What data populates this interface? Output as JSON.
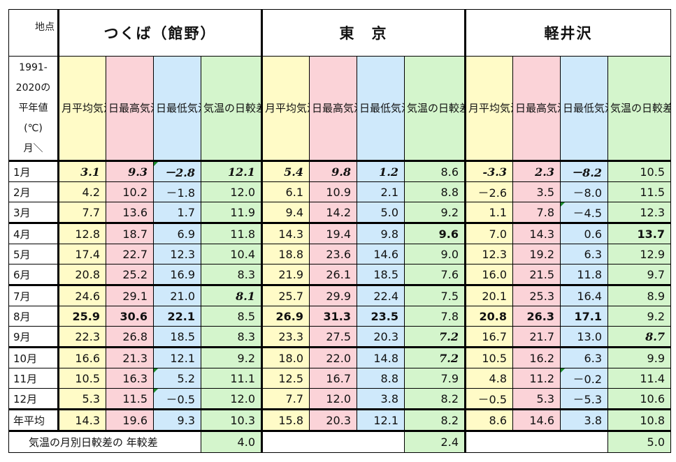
{
  "header": {
    "point_label": "地点",
    "locations": [
      "つくば（館野）",
      "東　京",
      "軽井沢"
    ],
    "year_label": "1991-2020の平年値(℃)月＼",
    "col_labels": [
      "月平均気温",
      "日最高気温の月平均",
      "日最低気温の月平均",
      "気温の日較差の月平均"
    ]
  },
  "rows": [
    {
      "month": "1月",
      "v": [
        "3.1",
        "9.3",
        "－2.8",
        "12.1",
        "5.4",
        "9.8",
        "1.2",
        "8.6",
        "-3.3",
        "2.3",
        "－8.2",
        "10.5"
      ]
    },
    {
      "month": "2月",
      "v": [
        "4.2",
        "10.2",
        "－1.8",
        "12.0",
        "6.1",
        "10.9",
        "2.1",
        "8.8",
        "－2.6",
        "3.5",
        "－8.0",
        "11.5"
      ]
    },
    {
      "month": "3月",
      "v": [
        "7.7",
        "13.6",
        "1.7",
        "11.9",
        "9.4",
        "14.2",
        "5.0",
        "9.2",
        "1.1",
        "7.8",
        "－4.5",
        "12.3"
      ]
    },
    {
      "month": "4月",
      "v": [
        "12.8",
        "18.7",
        "6.9",
        "11.8",
        "14.3",
        "19.4",
        "9.8",
        "9.6",
        "7.0",
        "14.3",
        "0.6",
        "13.7"
      ]
    },
    {
      "month": "5月",
      "v": [
        "17.4",
        "22.7",
        "12.3",
        "10.4",
        "18.8",
        "23.6",
        "14.6",
        "9.0",
        "12.3",
        "19.2",
        "6.3",
        "12.9"
      ]
    },
    {
      "month": "6月",
      "v": [
        "20.8",
        "25.2",
        "16.9",
        "8.3",
        "21.9",
        "26.1",
        "18.5",
        "7.6",
        "16.0",
        "21.5",
        "11.8",
        "9.7"
      ]
    },
    {
      "month": "7月",
      "v": [
        "24.6",
        "29.1",
        "21.0",
        "8.1",
        "25.7",
        "29.9",
        "22.4",
        "7.5",
        "20.1",
        "25.3",
        "16.4",
        "8.9"
      ]
    },
    {
      "month": "8月",
      "v": [
        "25.9",
        "30.6",
        "22.1",
        "8.5",
        "26.9",
        "31.3",
        "23.5",
        "7.8",
        "20.8",
        "26.3",
        "17.1",
        "9.2"
      ]
    },
    {
      "month": "9月",
      "v": [
        "22.3",
        "26.8",
        "18.5",
        "8.3",
        "23.3",
        "27.5",
        "20.3",
        "7.2",
        "16.7",
        "21.7",
        "13.0",
        "8.7"
      ]
    },
    {
      "month": "10月",
      "v": [
        "16.6",
        "21.3",
        "12.1",
        "9.2",
        "18.0",
        "22.0",
        "14.8",
        "7.2",
        "10.5",
        "16.2",
        "6.3",
        "9.9"
      ]
    },
    {
      "month": "11月",
      "v": [
        "10.5",
        "16.3",
        "5.2",
        "11.1",
        "12.5",
        "16.7",
        "8.8",
        "7.9",
        "4.8",
        "11.2",
        "－0.2",
        "11.4"
      ]
    },
    {
      "month": "12月",
      "v": [
        "5.3",
        "11.5",
        "－0.5",
        "12.0",
        "7.7",
        "12.0",
        "3.8",
        "8.2",
        "－0.5",
        "5.3",
        "－5.3",
        "10.6"
      ]
    },
    {
      "month": "年平均",
      "v": [
        "14.3",
        "19.6",
        "9.3",
        "10.3",
        "15.8",
        "20.3",
        "12.1",
        "8.2",
        "8.6",
        "14.6",
        "3.8",
        "10.8"
      ]
    }
  ],
  "footer": {
    "label": "気温の月別日較差の 年較差",
    "values": [
      "4.0",
      "2.4",
      "5.0"
    ]
  },
  "colors": {
    "mean_temp": "#fffbc7",
    "daily_max": "#fbd3d8",
    "daily_min": "#cfe9fb",
    "daily_range": "#d4f5cc",
    "comment_marker": "#1a8a2a"
  }
}
